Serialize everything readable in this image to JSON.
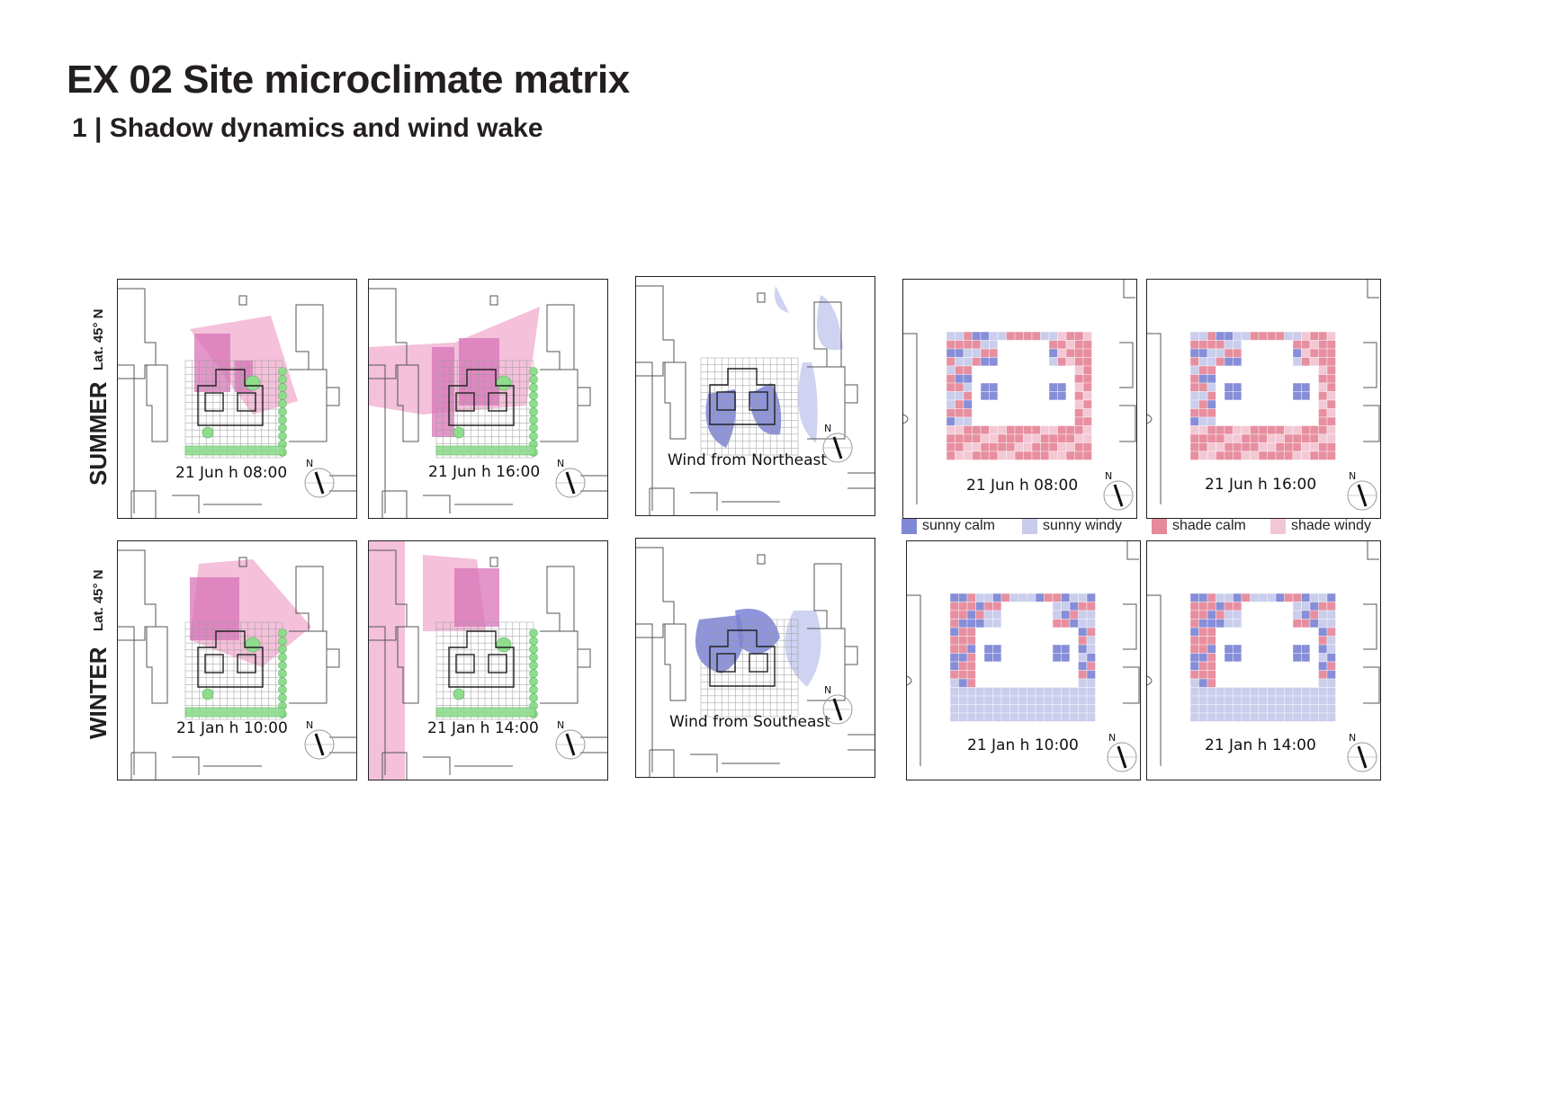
{
  "page": {
    "title": "EX 02 Site microclimate matrix",
    "subtitle": "1 | Shadow dynamics and wind wake"
  },
  "rows": {
    "summer": {
      "season": "SUMMER",
      "latitude": "Lat. 45° N"
    },
    "winter": {
      "season": "WINTER",
      "latitude": "Lat. 45° N"
    }
  },
  "shadow_panels": {
    "summer_morning": {
      "caption": "21 Jun h 08:00"
    },
    "summer_afternoon": {
      "caption": "21 Jun h 16:00"
    },
    "winter_morning": {
      "caption": "21 Jan h 10:00"
    },
    "winter_afternoon": {
      "caption": "21 Jan h 14:00"
    }
  },
  "wind_panels": {
    "summer": {
      "caption": "Wind from Northeast"
    },
    "winter": {
      "caption": "Wind from Southeast"
    }
  },
  "matrix_panels": {
    "summer_morning": {
      "caption": "21 Jun h 08:00"
    },
    "summer_afternoon": {
      "caption": "21 Jun h 16:00"
    },
    "winter_morning": {
      "caption": "21 Jan h 10:00"
    },
    "winter_afternoon": {
      "caption": "21 Jan h 14:00"
    }
  },
  "compass": {
    "north_label": "N"
  },
  "legend": [
    {
      "label": "sunny calm",
      "color": "#8088d6"
    },
    {
      "label": "sunny windy",
      "color": "#c8cbeb"
    },
    {
      "label": "shade calm",
      "color": "#e68a9b"
    },
    {
      "label": "shade windy",
      "color": "#f3c6d3"
    }
  ],
  "colors": {
    "shadow": "#f2b5d4",
    "shadow_dark": "#d873b8",
    "vegetation": "#8fdc8f",
    "wind_wake": "#7a83d6",
    "wind_wake_light": "#c7cbee",
    "outline": "#222222"
  }
}
